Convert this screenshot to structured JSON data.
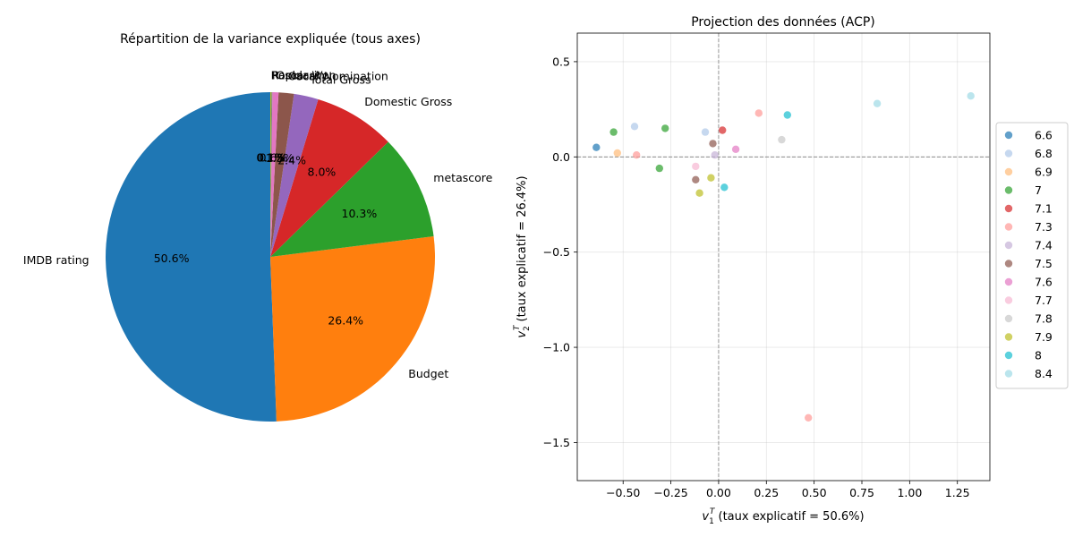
{
  "chart_data": [
    {
      "type": "pie",
      "title": "Répartition de la variance expliquée (tous axes)",
      "slices": [
        {
          "label": "IMDB rating",
          "value": 50.6,
          "pct_label": "50.6%",
          "color": "#1f77b4"
        },
        {
          "label": "Budget",
          "value": 26.4,
          "pct_label": "26.4%",
          "color": "#ff7f0e"
        },
        {
          "label": "metascore",
          "value": 10.3,
          "pct_label": "10.3%",
          "color": "#2ca02c"
        },
        {
          "label": "Domestic Gross",
          "value": 8.0,
          "pct_label": "8.0%",
          "color": "#d62728"
        },
        {
          "label": "Total Gross",
          "value": 2.4,
          "pct_label": "2.4%",
          "color": "#9467bd"
        },
        {
          "label": "Oscar Nomination",
          "value": 1.5,
          "pct_label": "1.5%",
          "color": "#8c564b"
        },
        {
          "label": "Oscar Won",
          "value": 0.6,
          "pct_label": "0.6%",
          "color": "#e377c2"
        },
        {
          "label": "Popularity",
          "value": 0.1,
          "pct_label": "0.1%",
          "color": "#7f7f7f"
        },
        {
          "label": "Rank",
          "value": 0.1,
          "pct_label": "0.1%",
          "color": "#bcbd22"
        }
      ]
    },
    {
      "type": "scatter",
      "title": "Projection des données (ACP)",
      "xlabel_prefix": "v",
      "xlabel_sub": "1",
      "xlabel_sup": "T",
      "xlabel_rest": " (taux explicatif = 50.6%)",
      "ylabel_prefix": "v",
      "ylabel_sub": "2",
      "ylabel_sup": "T",
      "ylabel_rest": " (taux explicatif = 26.4%)",
      "xlim": [
        -0.74,
        1.42
      ],
      "ylim": [
        -1.7,
        0.65
      ],
      "xticks": [
        -0.5,
        -0.25,
        0.0,
        0.25,
        0.5,
        0.75,
        1.0,
        1.25
      ],
      "xtick_labels": [
        "−0.50",
        "−0.25",
        "0.00",
        "0.25",
        "0.50",
        "0.75",
        "1.00",
        "1.25"
      ],
      "yticks": [
        0.5,
        0.0,
        -0.5,
        -1.0,
        -1.5
      ],
      "ytick_labels": [
        "0.5",
        "0.0",
        "−0.5",
        "−1.0",
        "−1.5"
      ],
      "grid": true,
      "legend_position": "right",
      "series": [
        {
          "name": "6.6",
          "color": "#1f77b4",
          "points": [
            [
              -0.64,
              0.05
            ]
          ]
        },
        {
          "name": "6.8",
          "color": "#aec7e8",
          "points": [
            [
              -0.44,
              0.16
            ],
            [
              -0.07,
              0.13
            ]
          ]
        },
        {
          "name": "6.9",
          "color": "#ffbb78",
          "points": [
            [
              -0.53,
              0.02
            ]
          ]
        },
        {
          "name": "7",
          "color": "#2ca02c",
          "points": [
            [
              -0.55,
              0.13
            ],
            [
              -0.28,
              0.15
            ],
            [
              -0.31,
              -0.06
            ]
          ]
        },
        {
          "name": "7.1",
          "color": "#d62728",
          "points": [
            [
              0.02,
              0.14
            ]
          ]
        },
        {
          "name": "7.3",
          "color": "#ff9896",
          "points": [
            [
              -0.43,
              0.01
            ],
            [
              0.21,
              0.23
            ],
            [
              0.47,
              -1.37
            ]
          ]
        },
        {
          "name": "7.4",
          "color": "#c5b0d5",
          "points": [
            [
              -0.02,
              0.01
            ]
          ]
        },
        {
          "name": "7.5",
          "color": "#8c564b",
          "points": [
            [
              -0.03,
              0.07
            ],
            [
              -0.12,
              -0.12
            ]
          ]
        },
        {
          "name": "7.6",
          "color": "#e377c2",
          "points": [
            [
              0.09,
              0.04
            ]
          ]
        },
        {
          "name": "7.7",
          "color": "#f7b6d2",
          "points": [
            [
              -0.12,
              -0.05
            ]
          ]
        },
        {
          "name": "7.8",
          "color": "#c7c7c7",
          "points": [
            [
              0.33,
              0.09
            ]
          ]
        },
        {
          "name": "7.9",
          "color": "#bcbd22",
          "points": [
            [
              -0.04,
              -0.11
            ],
            [
              -0.1,
              -0.19
            ]
          ]
        },
        {
          "name": "8",
          "color": "#17becf",
          "points": [
            [
              0.36,
              0.22
            ],
            [
              0.03,
              -0.16
            ]
          ]
        },
        {
          "name": "8.4",
          "color": "#9edae5",
          "points": [
            [
              0.83,
              0.28
            ],
            [
              1.32,
              0.32
            ]
          ]
        }
      ]
    }
  ]
}
